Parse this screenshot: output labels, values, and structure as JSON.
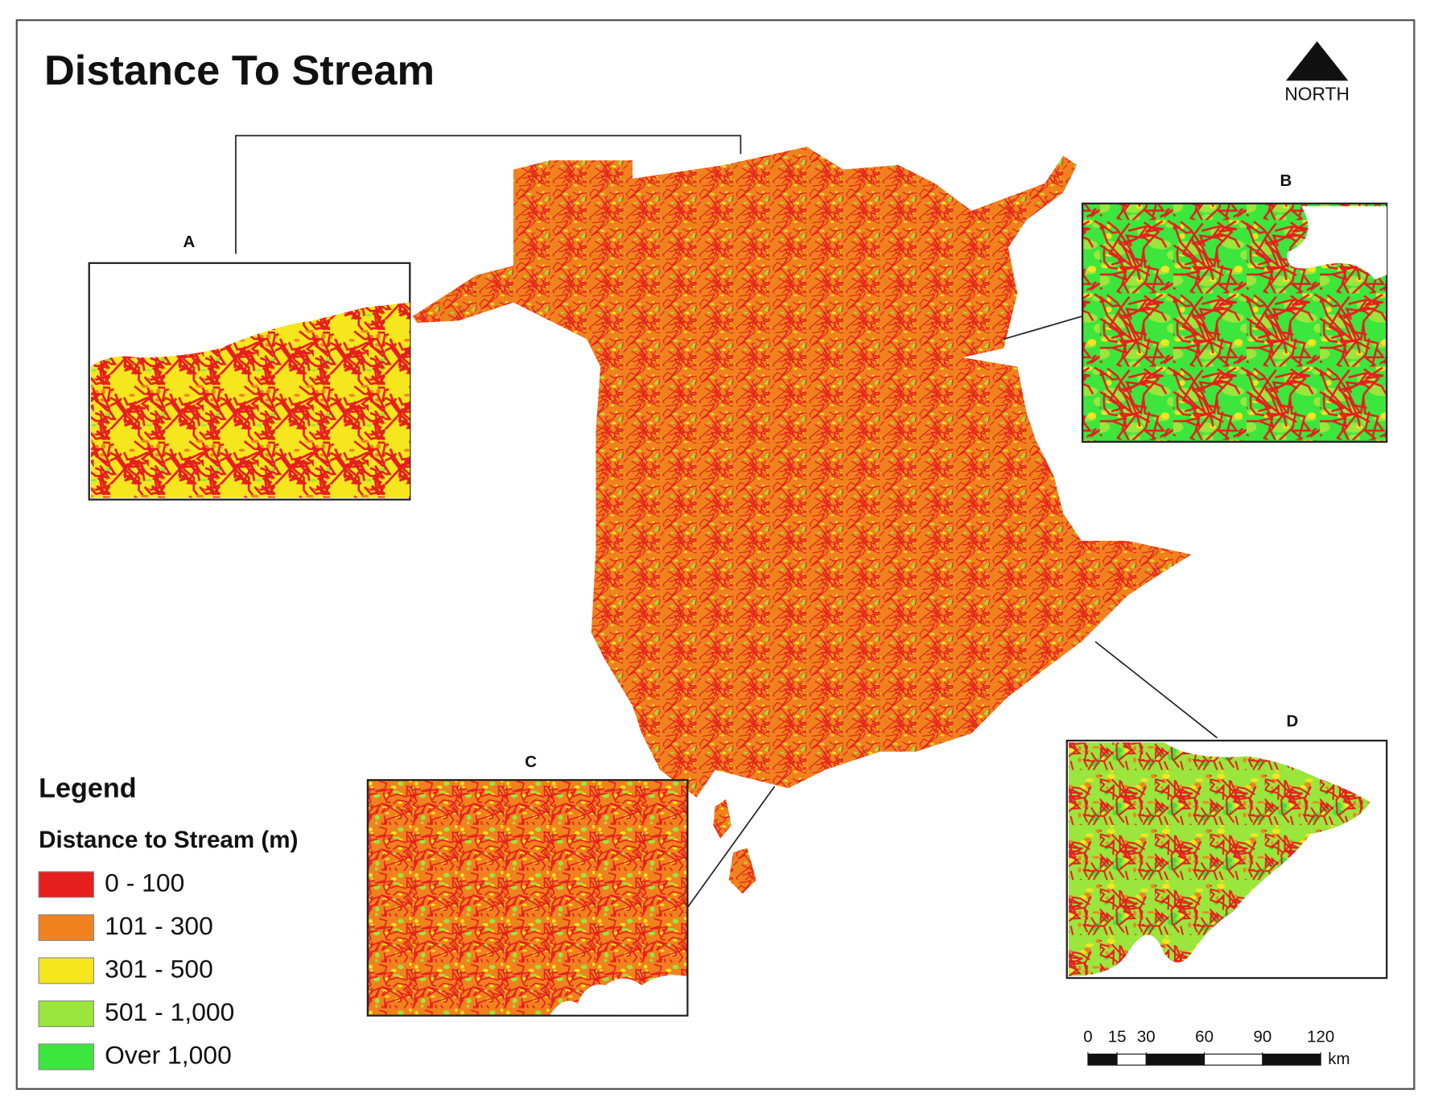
{
  "title": "Distance To Stream",
  "north_arrow": {
    "label": "NORTH"
  },
  "insets": [
    {
      "label": "A"
    },
    {
      "label": "B"
    },
    {
      "label": "C"
    },
    {
      "label": "D"
    }
  ],
  "legend": {
    "title": "Legend",
    "subtitle": "Distance to Stream (m)",
    "items": [
      {
        "label": "0 - 100",
        "color": "#e61e1e"
      },
      {
        "label": "101 - 300",
        "color": "#f0821e"
      },
      {
        "label": "301 - 500",
        "color": "#f5e61e"
      },
      {
        "label": "501 - 1,000",
        "color": "#9ae63c"
      },
      {
        "label": "Over 1,000",
        "color": "#3ce63c"
      }
    ]
  },
  "scale_bar": {
    "ticks": [
      0,
      15,
      30,
      60,
      90,
      120
    ],
    "unit": "km"
  }
}
